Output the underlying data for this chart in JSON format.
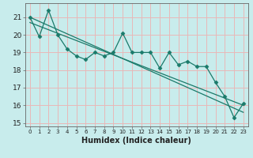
{
  "xlabel": "Humidex (Indice chaleur)",
  "bg_color": "#c8ecec",
  "grid_color": "#e8b8b8",
  "line_color": "#1a7a6a",
  "xlim": [
    -0.5,
    23.5
  ],
  "ylim": [
    14.8,
    21.8
  ],
  "yticks": [
    15,
    16,
    17,
    18,
    19,
    20,
    21
  ],
  "xtick_labels": [
    "0",
    "1",
    "2",
    "3",
    "4",
    "5",
    "6",
    "7",
    "8",
    "9",
    "10",
    "11",
    "12",
    "13",
    "14",
    "15",
    "16",
    "17",
    "18",
    "19",
    "20",
    "21",
    "22",
    "23"
  ],
  "series1": [
    21.0,
    19.9,
    21.4,
    20.0,
    19.2,
    18.8,
    18.6,
    19.0,
    18.8,
    19.0,
    20.1,
    19.0,
    19.0,
    19.0,
    18.1,
    19.0,
    18.3,
    18.5,
    18.2,
    18.2,
    17.3,
    16.5,
    15.3,
    16.1
  ],
  "series2_x": [
    0,
    23
  ],
  "series2_y": [
    21.0,
    15.6
  ],
  "series3_x": [
    0,
    23
  ],
  "series3_y": [
    20.7,
    16.0
  ],
  "markersize": 2.5,
  "linewidth": 0.9
}
